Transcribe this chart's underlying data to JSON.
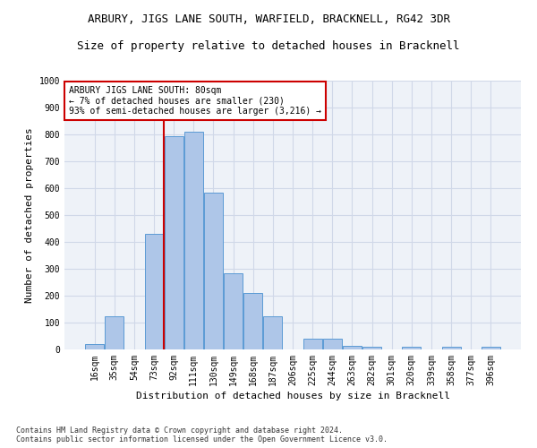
{
  "title": "ARBURY, JIGS LANE SOUTH, WARFIELD, BRACKNELL, RG42 3DR",
  "subtitle": "Size of property relative to detached houses in Bracknell",
  "xlabel": "Distribution of detached houses by size in Bracknell",
  "ylabel": "Number of detached properties",
  "categories": [
    "16sqm",
    "35sqm",
    "54sqm",
    "73sqm",
    "92sqm",
    "111sqm",
    "130sqm",
    "149sqm",
    "168sqm",
    "187sqm",
    "206sqm",
    "225sqm",
    "244sqm",
    "263sqm",
    "282sqm",
    "301sqm",
    "320sqm",
    "339sqm",
    "358sqm",
    "377sqm",
    "396sqm"
  ],
  "values": [
    20,
    125,
    0,
    430,
    795,
    810,
    585,
    285,
    210,
    125,
    0,
    40,
    40,
    15,
    10,
    0,
    10,
    0,
    10,
    0,
    10
  ],
  "bar_color": "#aec6e8",
  "bar_edge_color": "#5b9bd5",
  "vline_color": "#cc0000",
  "vline_pos": 3.5,
  "annotation_text": "ARBURY JIGS LANE SOUTH: 80sqm\n← 7% of detached houses are smaller (230)\n93% of semi-detached houses are larger (3,216) →",
  "annotation_box_color": "#ffffff",
  "annotation_box_edge": "#cc0000",
  "ylim": [
    0,
    1000
  ],
  "yticks": [
    0,
    100,
    200,
    300,
    400,
    500,
    600,
    700,
    800,
    900,
    1000
  ],
  "grid_color": "#d0d8e8",
  "bg_color": "#eef2f8",
  "footnote": "Contains HM Land Registry data © Crown copyright and database right 2024.\nContains public sector information licensed under the Open Government Licence v3.0.",
  "title_fontsize": 9,
  "subtitle_fontsize": 9,
  "ylabel_fontsize": 8,
  "xlabel_fontsize": 8,
  "tick_fontsize": 7,
  "annot_fontsize": 7,
  "footnote_fontsize": 6
}
